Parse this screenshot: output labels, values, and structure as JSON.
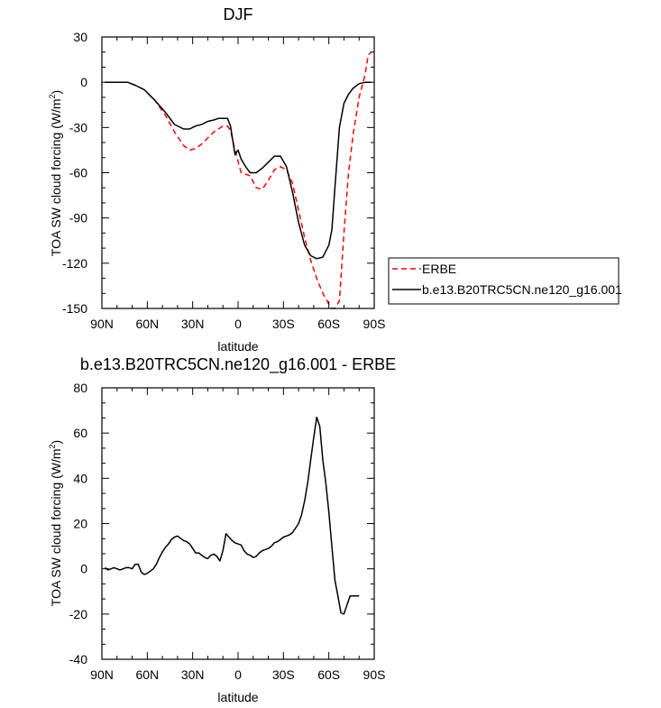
{
  "chart_data": [
    {
      "type": "line",
      "title": "DJF",
      "xlabel": "latitude",
      "ylabel": "TOA SW cloud forcing (W/m",
      "ylabel_sup": "2",
      "ylabel_tail": ")",
      "x_ticks": [
        -90,
        -60,
        -30,
        0,
        30,
        60,
        90
      ],
      "x_tick_labels": [
        "90N",
        "60N",
        "30N",
        "0",
        "30S",
        "60S",
        "90S"
      ],
      "y_ticks": [
        -150,
        -120,
        -90,
        -60,
        -30,
        0,
        30
      ],
      "y_tick_labels": [
        "-150",
        "-120",
        "-90",
        "-60",
        "-30",
        "0",
        "30"
      ],
      "xlim": [
        -90,
        90
      ],
      "ylim": [
        -150,
        30
      ],
      "legend_position": "right",
      "series": [
        {
          "name": "ERBE",
          "color": "#ff0000",
          "dash": "dashed",
          "x": [
            -88,
            -80,
            -73,
            -68,
            -62,
            -55,
            -48,
            -42,
            -36,
            -32,
            -28,
            -24,
            -20,
            -16,
            -13,
            -10,
            -7,
            -5,
            -2,
            2,
            5,
            8,
            12,
            16,
            20,
            24,
            28,
            32,
            36,
            40,
            44,
            48,
            52,
            56,
            60,
            62,
            64,
            67,
            70,
            73,
            76,
            80,
            84,
            86,
            88
          ],
          "y": [
            0,
            0,
            0,
            -2,
            -5,
            -12,
            -22,
            -33,
            -42,
            -45,
            -44,
            -41,
            -37,
            -33,
            -31,
            -29,
            -29,
            -32,
            -45,
            -60,
            -61,
            -62,
            -70,
            -71,
            -65,
            -58,
            -56,
            -58,
            -67,
            -85,
            -103,
            -118,
            -130,
            -140,
            -147,
            -150,
            -150,
            -145,
            -100,
            -60,
            -35,
            -10,
            5,
            18,
            20
          ]
        },
        {
          "name": "b.e13.B20TRC5CN.ne120_g16.001",
          "color": "#000000",
          "dash": "solid",
          "x": [
            -88,
            -80,
            -73,
            -68,
            -62,
            -55,
            -48,
            -42,
            -36,
            -32,
            -28,
            -24,
            -20,
            -16,
            -13,
            -10,
            -7,
            -5,
            -2,
            0,
            2,
            5,
            8,
            12,
            16,
            20,
            24,
            28,
            32,
            36,
            40,
            44,
            48,
            52,
            56,
            60,
            62,
            64,
            67,
            70,
            73,
            76,
            80,
            84,
            88
          ],
          "y": [
            0,
            0,
            0,
            -2,
            -5,
            -12,
            -20,
            -28,
            -31,
            -31,
            -29,
            -28,
            -26,
            -25,
            -24,
            -24,
            -24,
            -29,
            -48,
            -45,
            -51,
            -56,
            -60,
            -60,
            -57,
            -53,
            -49,
            -49,
            -56,
            -73,
            -93,
            -108,
            -115,
            -117,
            -116,
            -108,
            -98,
            -70,
            -30,
            -14,
            -8,
            -4,
            -1,
            0,
            0
          ]
        }
      ]
    },
    {
      "type": "line",
      "title": "b.e13.B20TRC5CN.ne120_g16.001 - ERBE",
      "xlabel": "latitude",
      "ylabel": "TOA SW cloud forcing (W/m",
      "ylabel_sup": "2",
      "ylabel_tail": ")",
      "x_ticks": [
        -90,
        -60,
        -30,
        0,
        30,
        60,
        90
      ],
      "x_tick_labels": [
        "90N",
        "60N",
        "30N",
        "0",
        "30S",
        "60S",
        "90S"
      ],
      "y_ticks": [
        -40,
        -20,
        0,
        20,
        40,
        60,
        80
      ],
      "y_tick_labels": [
        "-40",
        "-20",
        "0",
        "20",
        "40",
        "60",
        "80"
      ],
      "xlim": [
        -90,
        90
      ],
      "ylim": [
        -40,
        80
      ],
      "series": [
        {
          "color": "#000000",
          "x": [
            -88,
            -86,
            -84,
            -82,
            -80,
            -78,
            -76,
            -74,
            -72,
            -70,
            -68,
            -66,
            -64,
            -62,
            -60,
            -58,
            -56,
            -54,
            -52,
            -50,
            -48,
            -46,
            -44,
            -42,
            -40,
            -38,
            -36,
            -34,
            -32,
            -30,
            -28,
            -26,
            -24,
            -22,
            -20,
            -18,
            -16,
            -14,
            -12,
            -10,
            -8,
            -6,
            -4,
            -2,
            0,
            2,
            4,
            6,
            8,
            10,
            12,
            14,
            16,
            18,
            20,
            22,
            24,
            26,
            28,
            30,
            32,
            34,
            36,
            38,
            40,
            42,
            44,
            46,
            48,
            50,
            52,
            54,
            56,
            58,
            60,
            62,
            64,
            66,
            68,
            70,
            72,
            74,
            76,
            78,
            80,
            82,
            84,
            86,
            88
          ],
          "y": [
            0.5,
            -0.5,
            0,
            0.5,
            0,
            -0.5,
            0,
            0.5,
            0.5,
            0,
            2,
            2,
            -1.5,
            -2.5,
            -2,
            -1,
            0,
            2,
            5,
            7.5,
            9.5,
            11,
            13,
            14,
            14.5,
            13.5,
            12.5,
            12,
            11,
            9,
            7,
            7,
            6,
            5,
            4.5,
            6,
            6.5,
            5.5,
            3.5,
            8,
            15.5,
            14,
            12.5,
            11.5,
            11,
            10.5,
            8,
            6.5,
            6,
            5,
            5.5,
            7,
            8,
            8.5,
            9,
            10,
            11.5,
            12,
            13,
            14,
            14.5,
            15,
            16,
            18,
            20,
            24,
            30,
            38,
            48,
            58,
            67,
            63,
            48,
            38,
            25,
            10,
            -5,
            -12,
            -19.5,
            -20,
            -16,
            -12,
            -12,
            -12,
            -12,
            -12,
            -12,
            -12,
            -12
          ],
          "x_trim": 80
        }
      ]
    }
  ]
}
